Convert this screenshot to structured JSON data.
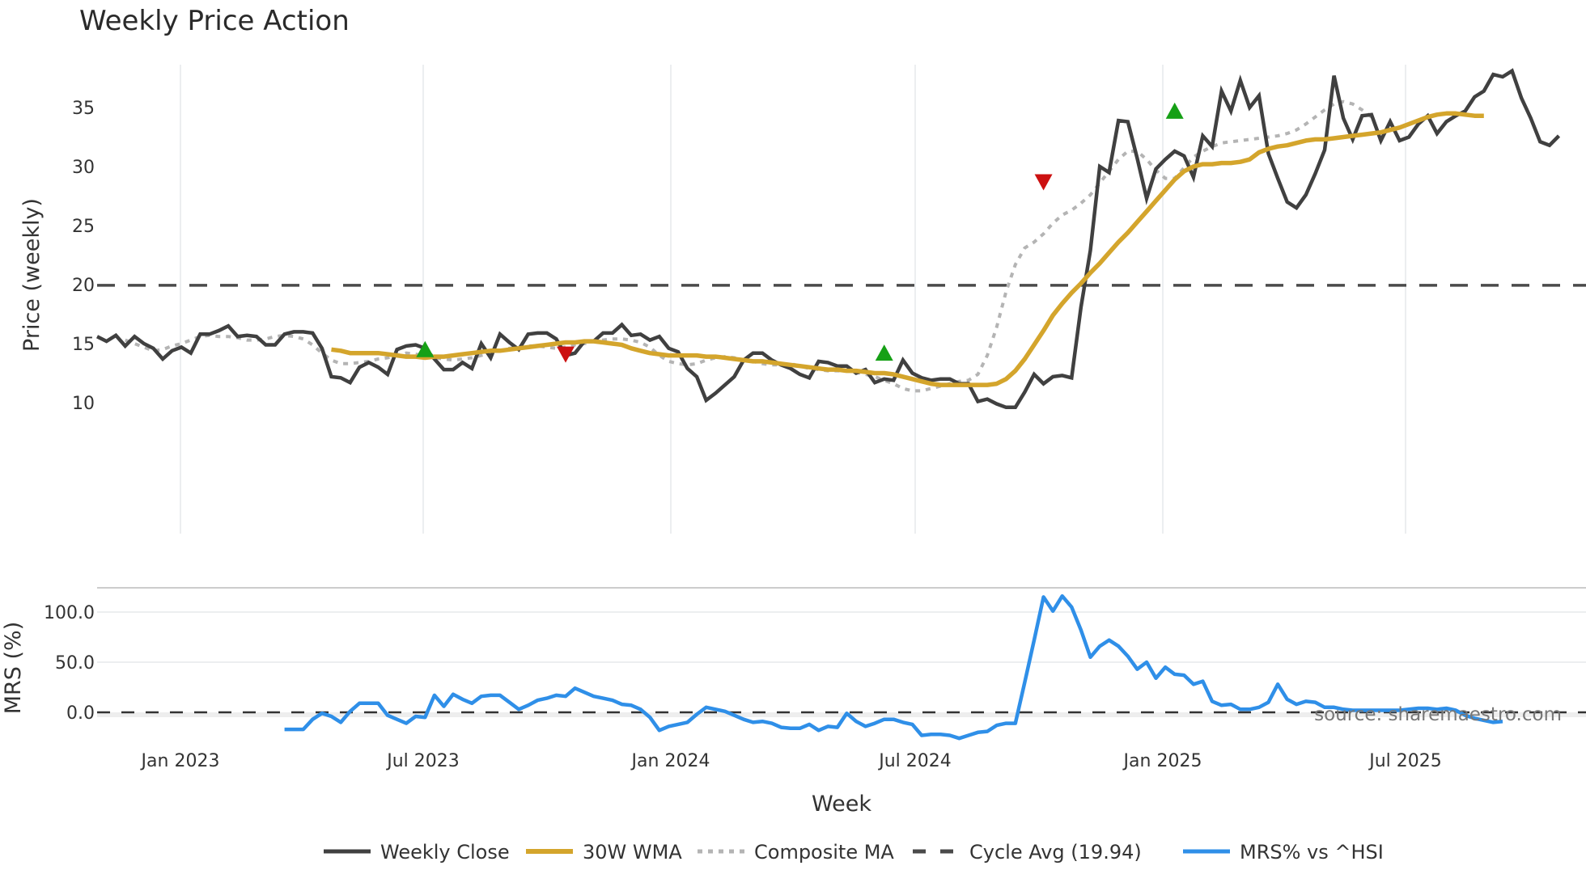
{
  "title": "Weekly Price Action",
  "source_text": "source: sharemaestro.com",
  "colors": {
    "close": "#404040",
    "wma": "#D4A52C",
    "composite": "#B4B4B4",
    "cycle": "#4a4a4a",
    "mrs": "#2F8FE8",
    "buy": "#16A016",
    "sell": "#CC1111",
    "grid": "#ECEEF0"
  },
  "legend": [
    {
      "key": "close",
      "label": "Weekly Close",
      "style": "solid"
    },
    {
      "key": "wma",
      "label": "30W WMA",
      "style": "solid"
    },
    {
      "key": "composite",
      "label": "Composite MA",
      "style": "dotted"
    },
    {
      "key": "cycle",
      "label": "Cycle Avg (19.94)",
      "style": "dashed"
    },
    {
      "key": "mrs",
      "label": "MRS% vs ^HSI",
      "style": "solid"
    }
  ],
  "chart_data": [
    {
      "type": "line",
      "title": "Weekly Price Action",
      "xlabel": "",
      "ylabel": "Price (weekly)",
      "ylim": [
        8,
        39
      ],
      "yticks": [
        10,
        15,
        20,
        25,
        30,
        35
      ],
      "xticks": [
        "Jan 2023",
        "Jul 2023",
        "Jan 2024",
        "Jul 2024",
        "Jan 2025",
        "Jul 2025"
      ],
      "grid": true,
      "reference_lines": [
        {
          "name": "Cycle Avg (19.94)",
          "y": 19.94,
          "style": "dashed"
        }
      ],
      "x_start_week_offset": -7,
      "series": [
        {
          "name": "Weekly Close",
          "start": 0,
          "values": [
            15.6,
            15.2,
            15.7,
            14.8,
            15.6,
            15.0,
            14.6,
            13.7,
            14.4,
            14.7,
            14.2,
            15.8,
            15.8,
            16.1,
            16.5,
            15.6,
            15.7,
            15.6,
            14.9,
            14.9,
            15.8,
            16.0,
            16.0,
            15.9,
            14.6,
            12.2,
            12.1,
            11.7,
            13.0,
            13.4,
            13.0,
            12.4,
            14.5,
            14.8,
            14.9,
            14.6,
            13.7,
            12.8,
            12.8,
            13.4,
            12.9,
            15.0,
            13.8,
            15.8,
            15.1,
            14.5,
            15.8,
            15.9,
            15.9,
            15.4,
            14.0,
            14.2,
            15.2,
            15.2,
            15.9,
            15.9,
            16.6,
            15.7,
            15.8,
            15.3,
            15.6,
            14.6,
            14.3,
            12.9,
            12.2,
            10.2,
            10.8,
            11.5,
            12.2,
            13.6,
            14.2,
            14.2,
            13.6,
            13.2,
            12.9,
            12.4,
            12.1,
            13.5,
            13.4,
            13.1,
            13.1,
            12.5,
            12.8,
            11.7,
            12.0,
            11.9,
            13.6,
            12.5,
            12.1,
            11.9,
            12.0,
            12.0,
            11.6,
            11.6,
            10.1,
            10.3,
            9.9,
            9.6,
            9.6,
            10.9,
            12.4,
            11.6,
            12.2,
            12.3,
            12.1,
            18.1,
            22.9,
            30.0,
            29.5,
            33.9,
            33.8,
            30.7,
            27.3,
            29.8,
            30.6,
            31.3,
            30.9,
            29.1,
            32.6,
            31.7,
            36.4,
            34.7,
            37.3,
            35.0,
            36.0,
            31.1,
            29.0,
            27.0,
            26.5,
            27.6,
            29.4,
            31.4,
            37.7,
            34.1,
            32.3,
            34.3,
            34.4,
            32.2,
            33.8,
            32.2,
            32.5,
            33.6,
            34.3,
            32.8,
            33.8,
            34.3,
            34.7,
            35.9,
            36.4,
            37.8,
            37.6,
            38.1,
            35.8,
            34.1,
            32.1,
            31.8,
            32.6
          ]
        },
        {
          "name": "30W WMA",
          "start": 25,
          "values": [
            14.5,
            14.4,
            14.2,
            14.2,
            14.2,
            14.2,
            14.1,
            14.0,
            13.9,
            13.9,
            13.8,
            13.9,
            13.9,
            14.0,
            14.1,
            14.2,
            14.3,
            14.4,
            14.4,
            14.5,
            14.6,
            14.7,
            14.8,
            14.9,
            15.0,
            15.1,
            15.1,
            15.2,
            15.2,
            15.1,
            15.0,
            14.9,
            14.6,
            14.4,
            14.2,
            14.1,
            14.0,
            14.0,
            14.0,
            14.0,
            13.9,
            13.9,
            13.8,
            13.7,
            13.6,
            13.5,
            13.5,
            13.4,
            13.3,
            13.2,
            13.1,
            13.0,
            12.9,
            12.8,
            12.8,
            12.7,
            12.7,
            12.6,
            12.5,
            12.5,
            12.4,
            12.2,
            12.0,
            11.8,
            11.6,
            11.5,
            11.5,
            11.5,
            11.5,
            11.5,
            11.5,
            11.6,
            12.0,
            12.7,
            13.7,
            14.9,
            16.1,
            17.4,
            18.4,
            19.3,
            20.1,
            21.0,
            21.8,
            22.7,
            23.6,
            24.4,
            25.3,
            26.2,
            27.1,
            28.0,
            28.9,
            29.6,
            30.0,
            30.2,
            30.2,
            30.3,
            30.3,
            30.4,
            30.6,
            31.2,
            31.5,
            31.7,
            31.8,
            32.0,
            32.2,
            32.3,
            32.3,
            32.4,
            32.5,
            32.6,
            32.7,
            32.8,
            32.9,
            33.1,
            33.3,
            33.6,
            33.9,
            34.2,
            34.4,
            34.5,
            34.5,
            34.4,
            34.3,
            34.3
          ]
        },
        {
          "name": "Composite MA",
          "start": 3,
          "values": [
            15.3,
            15.0,
            14.7,
            14.4,
            14.5,
            14.8,
            15.0,
            15.3,
            15.6,
            15.7,
            15.6,
            15.6,
            15.5,
            15.3,
            15.3,
            15.4,
            15.6,
            15.7,
            15.6,
            15.4,
            14.9,
            14.2,
            13.6,
            13.3,
            13.3,
            13.4,
            13.5,
            13.7,
            13.8,
            14.0,
            14.2,
            14.1,
            14.0,
            13.8,
            13.7,
            13.6,
            13.7,
            13.8,
            14.0,
            14.2,
            14.4,
            14.6,
            14.7,
            14.8,
            14.8,
            14.7,
            14.6,
            14.7,
            14.9,
            15.0,
            15.2,
            15.3,
            15.4,
            15.4,
            15.3,
            15.1,
            14.7,
            14.0,
            13.5,
            13.3,
            13.2,
            13.3,
            13.6,
            13.8,
            13.9,
            13.8,
            13.6,
            13.5,
            13.3,
            13.2,
            13.2,
            13.3,
            13.1,
            12.9,
            12.8,
            12.7,
            12.7,
            12.7,
            12.6,
            12.4,
            12.2,
            11.9,
            11.6,
            11.2,
            11.0,
            11.0,
            11.2,
            11.4,
            11.6,
            11.8,
            11.9,
            12.4,
            14.0,
            16.4,
            19.4,
            21.7,
            23.1,
            23.6,
            24.3,
            25.2,
            25.9,
            26.3,
            26.9,
            27.6,
            28.6,
            29.6,
            30.6,
            31.3,
            31.3,
            30.6,
            29.7,
            29.0,
            29.0,
            29.9,
            30.8,
            31.3,
            31.7,
            32.0,
            32.1,
            32.2,
            32.3,
            32.4,
            32.5,
            32.6,
            32.8,
            33.1,
            33.6,
            34.2,
            34.8,
            35.3,
            35.5,
            35.3,
            34.8,
            34.2
          ]
        },
        {
          "name": "Buy signals",
          "points": [
            {
              "week": 35,
              "y": 14.4
            },
            {
              "week": 84,
              "y": 14.1
            },
            {
              "week": 115,
              "y": 34.6
            }
          ]
        },
        {
          "name": "Sell signals",
          "points": [
            {
              "week": 50,
              "y": 14.2
            },
            {
              "week": 101,
              "y": 28.8
            }
          ]
        }
      ]
    },
    {
      "type": "line",
      "title": "",
      "xlabel": "Week",
      "ylabel": "MRS (%)",
      "ylim": [
        -35,
        125
      ],
      "yticks": [
        "0.0",
        "50.0",
        "100.0"
      ],
      "reference_lines": [
        {
          "y": 0,
          "style": "dashed"
        }
      ],
      "series": [
        {
          "name": "MRS% vs ^HSI",
          "start": 20,
          "values": [
            -17,
            -17,
            -17,
            -7,
            -1,
            -4,
            -10,
            1,
            9,
            9,
            9,
            -3,
            -7,
            -11,
            -4,
            -5,
            17,
            6,
            18,
            13,
            9,
            16,
            17,
            17,
            10,
            3,
            7,
            12,
            14,
            17,
            16,
            24,
            20,
            16,
            14,
            12,
            8,
            7,
            3,
            -5,
            -18,
            -14,
            -12,
            -10,
            -2,
            5,
            3,
            1,
            -3,
            -7,
            -10,
            -9,
            -11,
            -15,
            -16,
            -16,
            -12,
            -18,
            -14,
            -15,
            -1,
            -9,
            -14,
            -11,
            -7,
            -7,
            -10,
            -12,
            -23,
            -22,
            -22,
            -23,
            -26,
            -23,
            -20,
            -19,
            -13,
            -11,
            -11,
            30,
            72,
            115,
            101,
            116,
            105,
            82,
            55,
            66,
            72,
            66,
            56,
            43,
            50,
            34,
            45,
            38,
            37,
            28,
            31,
            11,
            7,
            8,
            3,
            3,
            5,
            10,
            28,
            13,
            8,
            11,
            10,
            5,
            5,
            3,
            2,
            2,
            2,
            2,
            2,
            2,
            3,
            4,
            4,
            3,
            4,
            2,
            -3,
            -6,
            -8,
            -10,
            -9
          ]
        }
      ]
    }
  ]
}
